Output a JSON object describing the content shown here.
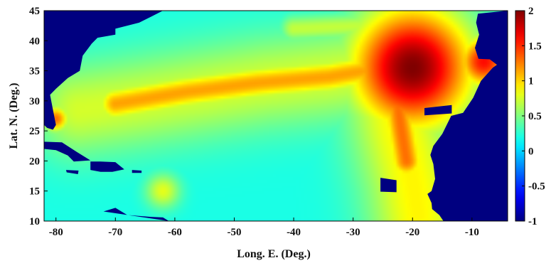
{
  "chart_data": {
    "type": "heatmap",
    "title": "",
    "xlabel": "Long. E. (Deg.)",
    "ylabel": "Lat. N. (Deg.)",
    "xlim": [
      -82,
      -4
    ],
    "ylim": [
      10,
      45
    ],
    "x_ticks": [
      -80,
      -70,
      -60,
      -50,
      -40,
      -30,
      -20,
      -10
    ],
    "y_ticks": [
      10,
      15,
      20,
      25,
      30,
      35,
      40,
      45
    ],
    "x_tick_labels": [
      "-80",
      "-70",
      "-60",
      "-50",
      "-40",
      "-30",
      "-20",
      "-10"
    ],
    "y_tick_labels": [
      "10",
      "15",
      "20",
      "25",
      "30",
      "35",
      "40",
      "45"
    ],
    "colorbar": {
      "range": [
        -1,
        2
      ],
      "ticks": [
        -1,
        -0.5,
        0,
        0.5,
        1,
        1.5,
        2
      ],
      "tick_labels": [
        "-1",
        "-0.5",
        "0",
        "0.5",
        "1",
        "1.5",
        "2"
      ],
      "colormap": "jet"
    },
    "land_value": -1,
    "background_value": 0.2,
    "field_features": [
      {
        "feature": "main_plume_band",
        "path_lon_lat": [
          [
            -76,
            28.5
          ],
          [
            -65,
            30
          ],
          [
            -55,
            31.5
          ],
          [
            -45,
            33
          ],
          [
            -35,
            34
          ],
          [
            -27,
            35
          ]
        ],
        "width_deg": 11,
        "value": 0.75
      },
      {
        "feature": "plume_core",
        "path_lon_lat": [
          [
            -70,
            29.5
          ],
          [
            -58,
            31.5
          ],
          [
            -46,
            33
          ],
          [
            -34,
            34
          ],
          [
            -28,
            35
          ]
        ],
        "width_deg": 4,
        "value": 1.15
      },
      {
        "feature": "source_region",
        "center_lon_lat": [
          -20,
          35.5
        ],
        "radius_deg": 7,
        "value": 2.0
      },
      {
        "feature": "iberian_coast",
        "center_lon_lat": [
          -8,
          36.5
        ],
        "radius_deg": 3,
        "value": 1.6
      },
      {
        "feature": "southward_lobe",
        "path_lon_lat": [
          [
            -24,
            34
          ],
          [
            -22,
            25
          ],
          [
            -20,
            17
          ],
          [
            -19,
            11
          ]
        ],
        "width_deg": 12,
        "value": 0.9
      },
      {
        "feature": "southward_core",
        "path_lon_lat": [
          [
            -23,
            33
          ],
          [
            -22,
            26
          ],
          [
            -21,
            20
          ]
        ],
        "width_deg": 4,
        "value": 1.3
      },
      {
        "feature": "northeast_band",
        "path_lon_lat": [
          [
            -40,
            42
          ],
          [
            -28,
            42.5
          ],
          [
            -15,
            43
          ]
        ],
        "width_deg": 3,
        "value": 0.7
      },
      {
        "feature": "florida_coast",
        "center_lon_lat": [
          -80,
          27
        ],
        "radius_deg": 1.5,
        "value": 1.3
      },
      {
        "feature": "caribbean_islands",
        "center_lon_lat": [
          -62,
          15
        ],
        "radius_deg": 2,
        "value": 0.8
      }
    ],
    "grid": false,
    "legend": "colorbar-right"
  }
}
